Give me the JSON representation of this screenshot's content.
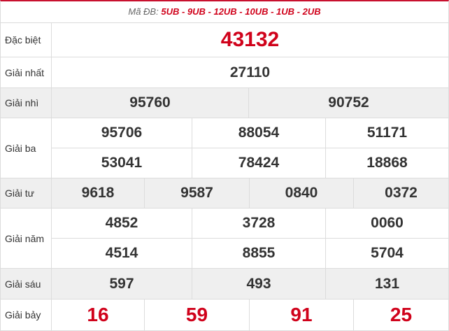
{
  "header": {
    "prefix": "Mã ĐB: ",
    "codes": "5UB - 9UB - 12UB - 10UB - 1UB - 2UB"
  },
  "prizes": {
    "db": {
      "label": "Đặc biệt",
      "numbers": [
        "43132"
      ]
    },
    "g1": {
      "label": "Giải nhất",
      "numbers": [
        "27110"
      ]
    },
    "g2": {
      "label": "Giải nhì",
      "numbers": [
        "95760",
        "90752"
      ]
    },
    "g3": {
      "label": "Giải ba",
      "numbers": [
        "95706",
        "88054",
        "51171",
        "53041",
        "78424",
        "18868"
      ]
    },
    "g4": {
      "label": "Giải tư",
      "numbers": [
        "9618",
        "9587",
        "0840",
        "0372"
      ]
    },
    "g5": {
      "label": "Giải năm",
      "numbers": [
        "4852",
        "3728",
        "0060",
        "4514",
        "8855",
        "5704"
      ]
    },
    "g6": {
      "label": "Giải sáu",
      "numbers": [
        "597",
        "493",
        "131"
      ]
    },
    "g7": {
      "label": "Giải bảy",
      "numbers": [
        "16",
        "59",
        "91",
        "25"
      ]
    }
  },
  "colors": {
    "accent": "#d0021b",
    "shade": "#efefef",
    "border": "#dcdcdc"
  }
}
